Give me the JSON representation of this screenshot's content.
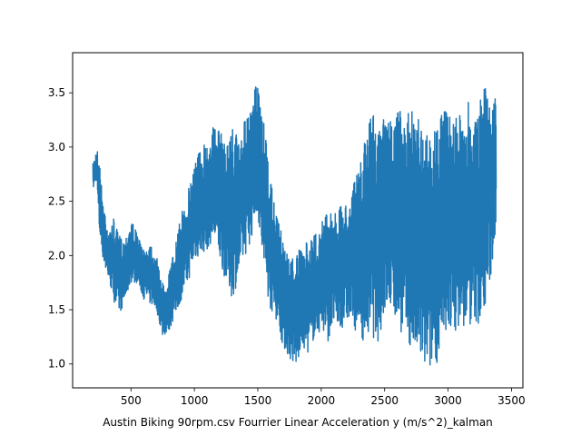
{
  "chart_data": {
    "type": "line",
    "title": "",
    "xlabel": "Austin Biking 90rpm.csv Fourrier Linear Acceleration y (m/s^2)_kalman",
    "ylabel": "",
    "xlim": [
      40,
      3590
    ],
    "ylim": [
      0.78,
      3.87
    ],
    "xticks": [
      500,
      1000,
      1500,
      2000,
      2500,
      3000,
      3500
    ],
    "yticks": [
      1.0,
      1.5,
      2.0,
      2.5,
      3.0,
      3.5
    ],
    "xtick_labels": [
      "500",
      "1000",
      "1500",
      "2000",
      "2500",
      "3000",
      "3500"
    ],
    "ytick_labels": [
      "1.0",
      "1.5",
      "2.0",
      "2.5",
      "3.0",
      "3.5"
    ],
    "grid": false,
    "legend": "none",
    "line_color": "#1f77b4",
    "series": [
      {
        "x_range": [
          200,
          3380
        ],
        "envelope_x": [
          200,
          230,
          250,
          275,
          300,
          330,
          360,
          400,
          450,
          500,
          550,
          600,
          650,
          700,
          750,
          800,
          850,
          900,
          950,
          1000,
          1050,
          1100,
          1150,
          1200,
          1250,
          1300,
          1350,
          1400,
          1450,
          1480,
          1500,
          1520,
          1550,
          1600,
          1650,
          1700,
          1750,
          1800,
          1850,
          1900,
          1950,
          2000,
          2050,
          2100,
          2150,
          2200,
          2250,
          2300,
          2350,
          2400,
          2450,
          2500,
          2550,
          2600,
          2650,
          2700,
          2750,
          2800,
          2850,
          2900,
          2950,
          3000,
          3050,
          3100,
          3150,
          3200,
          3250,
          3300,
          3340,
          3380
        ],
        "envelope_high": [
          2.85,
          3.0,
          2.9,
          2.55,
          2.4,
          2.2,
          2.35,
          2.2,
          2.15,
          2.35,
          2.2,
          2.05,
          2.15,
          2.0,
          1.75,
          1.85,
          2.1,
          2.4,
          2.6,
          2.9,
          3.0,
          3.1,
          3.2,
          3.15,
          3.05,
          3.2,
          3.1,
          3.25,
          3.35,
          3.55,
          3.65,
          3.4,
          3.2,
          2.7,
          2.35,
          2.2,
          1.95,
          2.05,
          2.05,
          2.15,
          2.2,
          2.3,
          2.45,
          2.4,
          2.45,
          2.5,
          2.65,
          2.8,
          3.1,
          3.4,
          3.15,
          3.3,
          3.25,
          3.45,
          3.2,
          3.35,
          3.5,
          3.2,
          3.15,
          3.2,
          3.3,
          3.4,
          3.25,
          3.3,
          3.45,
          3.3,
          3.4,
          3.72,
          3.45,
          3.45
        ],
        "envelope_low": [
          2.6,
          2.7,
          2.2,
          2.0,
          1.85,
          1.75,
          1.6,
          1.45,
          1.55,
          1.75,
          1.75,
          1.6,
          1.55,
          1.5,
          1.25,
          1.3,
          1.45,
          1.6,
          1.75,
          1.95,
          2.0,
          2.05,
          2.15,
          1.95,
          1.75,
          1.6,
          1.8,
          2.0,
          2.15,
          2.35,
          2.4,
          2.1,
          1.8,
          1.5,
          1.4,
          1.15,
          1.05,
          0.95,
          1.15,
          1.1,
          1.25,
          1.3,
          1.2,
          1.35,
          1.3,
          1.4,
          1.35,
          1.25,
          1.2,
          1.25,
          1.2,
          1.45,
          1.5,
          1.35,
          1.25,
          1.15,
          1.05,
          0.95,
          0.92,
          1.0,
          1.05,
          1.3,
          1.3,
          1.35,
          1.3,
          1.4,
          1.35,
          1.55,
          1.8,
          2.3
        ]
      }
    ]
  }
}
